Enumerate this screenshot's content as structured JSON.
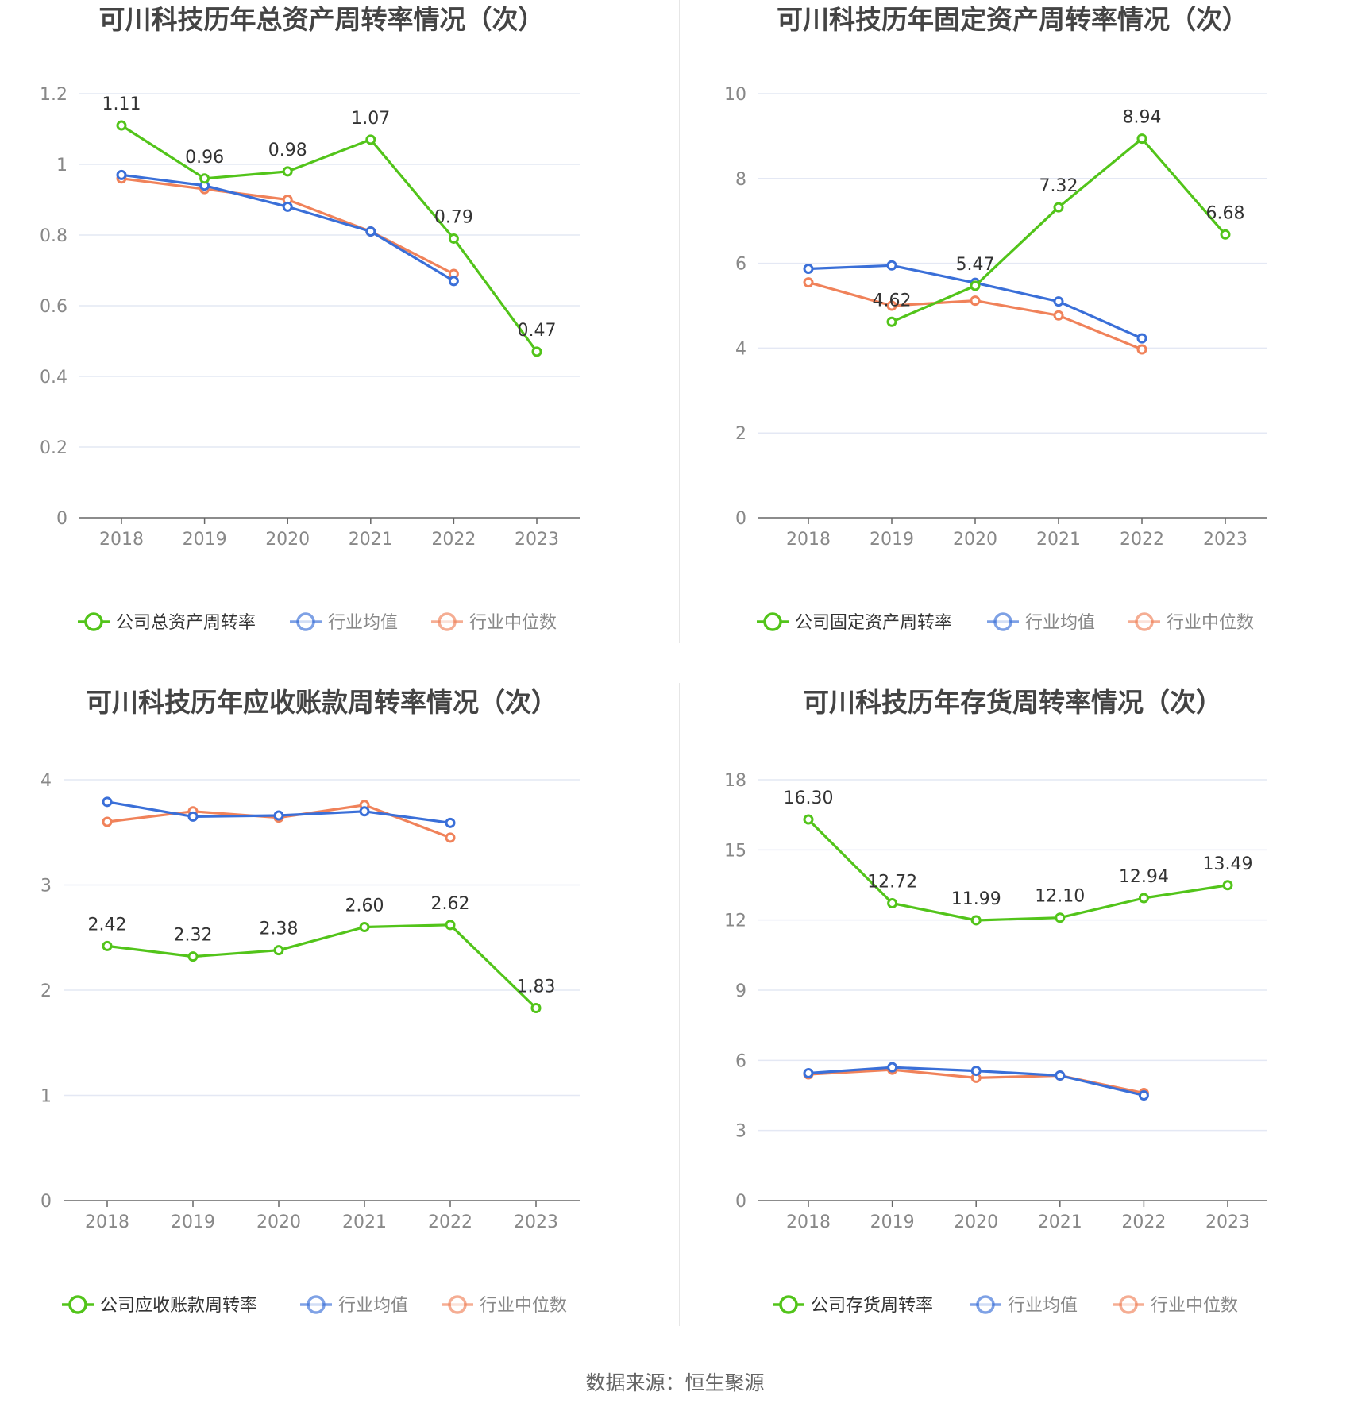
{
  "colors": {
    "company": "#52c41a",
    "avg": "#3a6fd8",
    "median": "#f0825a",
    "grid": "#e4e8f4",
    "axis": "#666666"
  },
  "source": "数据来源：恒生聚源",
  "chart_data": [
    {
      "type": "line",
      "title": "可川科技历年总资产周转率情况（次）",
      "categories": [
        "2018",
        "2019",
        "2020",
        "2021",
        "2022",
        "2023"
      ],
      "ylim": [
        0,
        1.2
      ],
      "yticks": [
        "0",
        "0.2",
        "0.4",
        "0.6",
        "0.8",
        "1",
        "1.2"
      ],
      "series": [
        {
          "name": "公司总资产周转率",
          "values": [
            1.11,
            0.96,
            0.98,
            1.07,
            0.79,
            0.47
          ],
          "labels": [
            "1.11",
            "0.96",
            "0.98",
            "1.07",
            "0.79",
            "0.47"
          ]
        },
        {
          "name": "行业均值",
          "values": [
            0.97,
            0.94,
            0.88,
            0.81,
            0.67,
            null
          ]
        },
        {
          "name": "行业中位数",
          "values": [
            0.96,
            0.93,
            0.9,
            0.81,
            0.69,
            null
          ]
        }
      ]
    },
    {
      "type": "line",
      "title": "可川科技历年固定资产周转率情况（次）",
      "categories": [
        "2018",
        "2019",
        "2020",
        "2021",
        "2022",
        "2023"
      ],
      "ylim": [
        0,
        10
      ],
      "yticks": [
        "0",
        "2",
        "4",
        "6",
        "8",
        "10"
      ],
      "series": [
        {
          "name": "公司固定资产周转率",
          "values": [
            null,
            4.62,
            5.47,
            7.32,
            8.94,
            6.68
          ],
          "labels": [
            "",
            "4.62",
            "5.47",
            "7.32",
            "8.94",
            "6.68"
          ]
        },
        {
          "name": "行业均值",
          "values": [
            5.87,
            5.95,
            5.54,
            5.1,
            4.23,
            null
          ]
        },
        {
          "name": "行业中位数",
          "values": [
            5.55,
            5.0,
            5.12,
            4.77,
            3.97,
            null
          ]
        }
      ]
    },
    {
      "type": "line",
      "title": "可川科技历年应收账款周转率情况（次）",
      "categories": [
        "2018",
        "2019",
        "2020",
        "2021",
        "2022",
        "2023"
      ],
      "ylim": [
        0,
        4
      ],
      "yticks": [
        "0",
        "1",
        "2",
        "3",
        "4"
      ],
      "series": [
        {
          "name": "公司应收账款周转率",
          "values": [
            2.42,
            2.32,
            2.38,
            2.6,
            2.62,
            1.83
          ],
          "labels": [
            "2.42",
            "2.32",
            "2.38",
            "2.60",
            "2.62",
            "1.83"
          ]
        },
        {
          "name": "行业均值",
          "values": [
            3.79,
            3.65,
            3.66,
            3.7,
            3.59,
            null
          ]
        },
        {
          "name": "行业中位数",
          "values": [
            3.6,
            3.7,
            3.64,
            3.76,
            3.45,
            null
          ]
        }
      ]
    },
    {
      "type": "line",
      "title": "可川科技历年存货周转率情况（次）",
      "categories": [
        "2018",
        "2019",
        "2020",
        "2021",
        "2022",
        "2023"
      ],
      "ylim": [
        0,
        18
      ],
      "yticks": [
        "0",
        "3",
        "6",
        "9",
        "12",
        "15",
        "18"
      ],
      "series": [
        {
          "name": "公司存货周转率",
          "values": [
            16.3,
            12.72,
            11.99,
            12.1,
            12.94,
            13.49
          ],
          "labels": [
            "16.30",
            "12.72",
            "11.99",
            "12.10",
            "12.94",
            "13.49"
          ]
        },
        {
          "name": "行业均值",
          "values": [
            5.45,
            5.7,
            5.55,
            5.35,
            4.5,
            null
          ]
        },
        {
          "name": "行业中位数",
          "values": [
            5.4,
            5.6,
            5.25,
            5.35,
            4.6,
            null
          ]
        }
      ]
    }
  ]
}
